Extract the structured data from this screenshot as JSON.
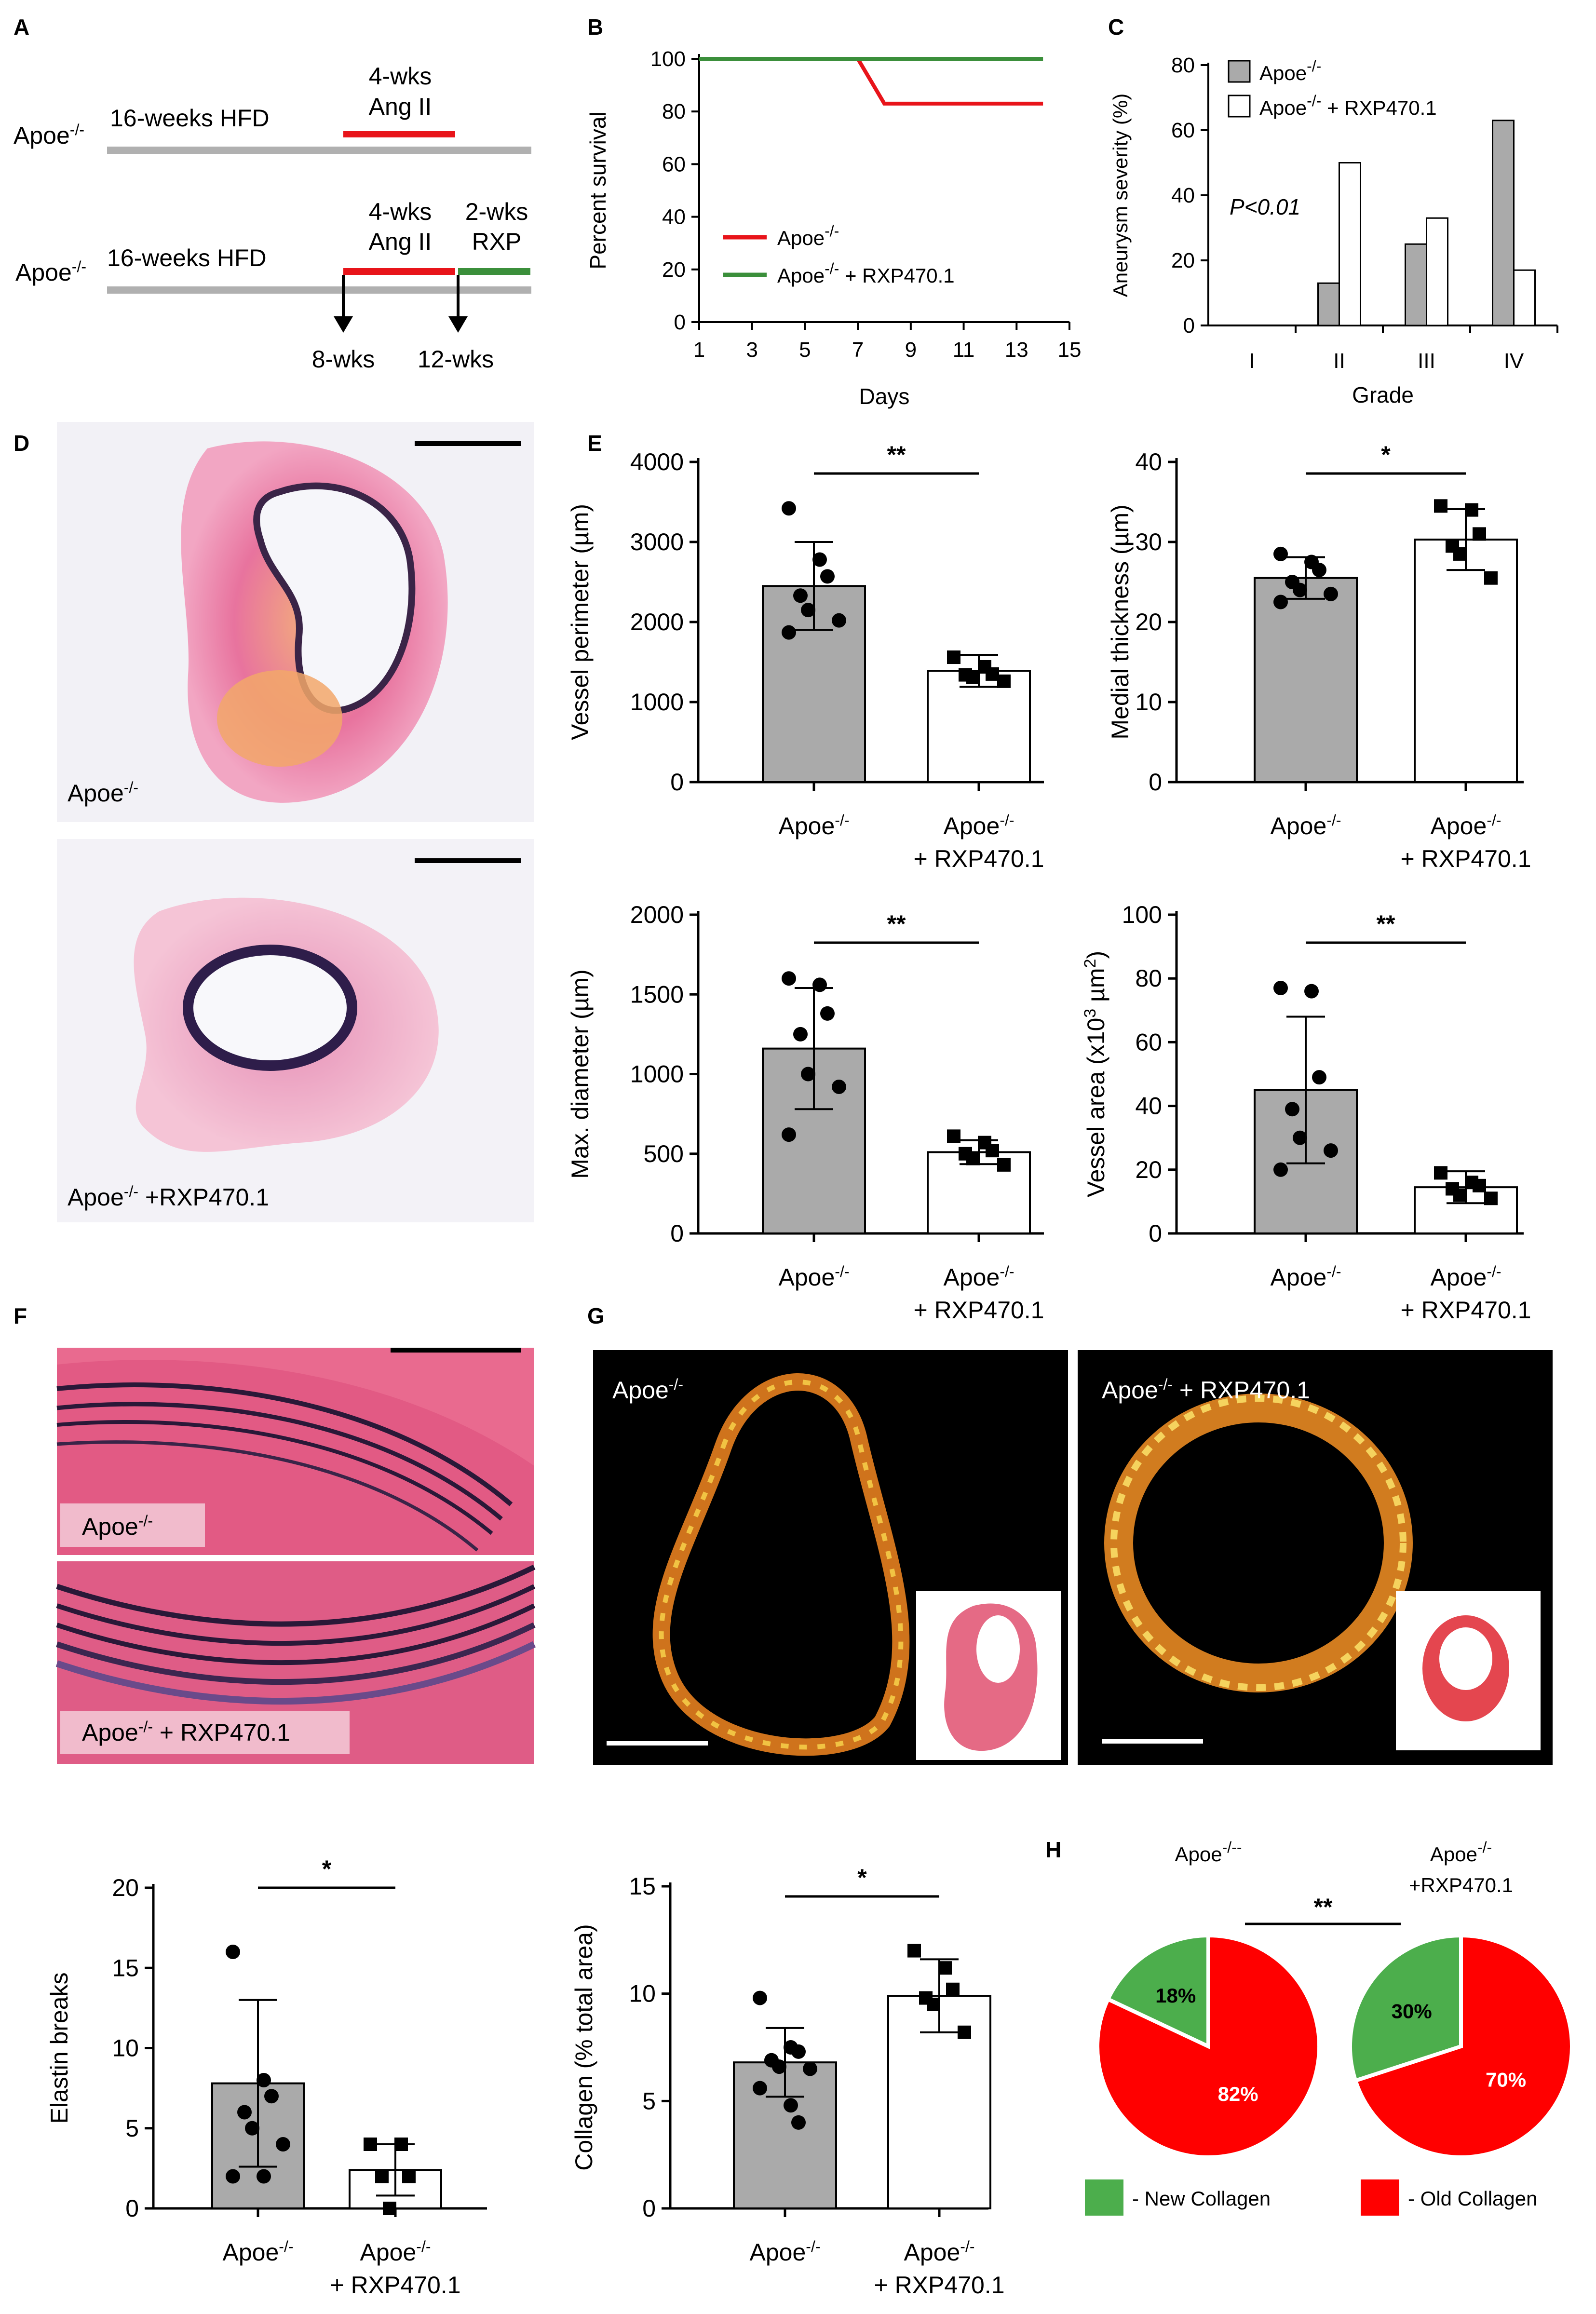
{
  "panels": {
    "A": {
      "label": "A",
      "row1": {
        "strain": "Apoe",
        "strain_sup": "-/-",
        "hfd": "16-weeks HFD",
        "ang_line1": "4-wks",
        "ang_line2": "Ang II"
      },
      "row2": {
        "strain": "Apoe",
        "strain_sup": "-/-",
        "hfd": "16-weeks HFD",
        "ang_line1": "4-wks",
        "ang_line2": "Ang II",
        "rxp_line1": "2-wks",
        "rxp_line2": "RXP",
        "arrow1": "8-wks",
        "arrow2": "12-wks"
      },
      "colors": {
        "baseline": "#b0b0b0",
        "ang": "#e8141a",
        "rxp": "#3b8f3b"
      }
    },
    "B": {
      "label": "B"
    },
    "C": {
      "label": "C"
    },
    "D": {
      "label": "D",
      "img1_label": "Apoe",
      "img1_sup": "-/-",
      "img2_label": "Apoe",
      "img2_sup": "-/-",
      "img2_suffix": " +RXP470.1"
    },
    "E": {
      "label": "E"
    },
    "F": {
      "label": "F",
      "img1_label": "Apoe",
      "img1_sup": "-/-",
      "img2_label": "Apoe",
      "img2_sup": "-/-",
      "img2_suffix": " + RXP470.1"
    },
    "G": {
      "label": "G",
      "img1_label": "Apoe",
      "img1_sup": "-/-",
      "img2_label": "Apoe",
      "img2_sup": "-/-",
      "img2_suffix": " + RXP470.1"
    },
    "H": {
      "label": "H"
    }
  },
  "groups": {
    "ctrl": {
      "name": "Apoe",
      "sup": "-/-"
    },
    "treat_line1": {
      "name": "Apoe",
      "sup": "-/-"
    },
    "treat_line2": "+ RXP470.1"
  },
  "colors": {
    "ctrl_bar": "#aaaaaa",
    "treat_bar": "#ffffff",
    "new_collagen": "#4cae4c",
    "old_collagen": "#ff0000",
    "survival_ctrl": "#e8141a",
    "survival_treat": "#3b8f3b"
  },
  "chart_data": [
    {
      "id": "B",
      "type": "line",
      "xlabel": "Days",
      "ylabel": "Percent survival",
      "xlim": [
        1,
        15
      ],
      "ylim": [
        0,
        100
      ],
      "xticks": [
        1,
        3,
        5,
        7,
        9,
        11,
        13,
        15
      ],
      "yticks": [
        0,
        20,
        40,
        60,
        80,
        100
      ],
      "series": [
        {
          "name": "Apoe-/-",
          "legend_name": "Apoe",
          "legend_sup": "-/-",
          "legend_suffix": "",
          "color": "#e8141a",
          "x": [
            1,
            7,
            8,
            14
          ],
          "y": [
            100,
            100,
            83,
            83
          ]
        },
        {
          "name": "Apoe-/- + RXP470.1",
          "legend_name": "Apoe",
          "legend_sup": "-/-",
          "legend_suffix": " + RXP470.1",
          "color": "#3b8f3b",
          "x": [
            1,
            14
          ],
          "y": [
            100,
            100
          ]
        }
      ]
    },
    {
      "id": "C",
      "type": "bar",
      "xlabel": "Grade",
      "ylabel": "Aneurysm severity (%)",
      "categories": [
        "I",
        "II",
        "III",
        "IV"
      ],
      "ylim": [
        0,
        80
      ],
      "yticks": [
        0,
        20,
        40,
        60,
        80
      ],
      "annotation": "P<0.01",
      "series": [
        {
          "name": "Apoe-/-",
          "legend_name": "Apoe",
          "legend_sup": "-/-",
          "legend_suffix": "",
          "color": "#aaaaaa",
          "values": [
            0,
            13,
            25,
            63
          ]
        },
        {
          "name": "Apoe-/- + RXP470.1",
          "legend_name": "Apoe",
          "legend_sup": "-/-",
          "legend_suffix": " + RXP470.1",
          "color": "#ffffff",
          "values": [
            0,
            50,
            33,
            17
          ]
        }
      ]
    },
    {
      "id": "E1",
      "type": "bar",
      "ylabel": "Vessel perimeter (µm)",
      "ylim": [
        0,
        4000
      ],
      "yticks": [
        0,
        1000,
        2000,
        3000,
        4000
      ],
      "significance": "**",
      "groups": [
        {
          "mean": 2450,
          "sd": 550,
          "marker": "circle",
          "points": [
            3420,
            2780,
            2570,
            2330,
            2150,
            2020,
            1870
          ]
        },
        {
          "mean": 1390,
          "sd": 200,
          "marker": "square",
          "points": [
            1560,
            1440,
            1350,
            1340,
            1310,
            1260
          ]
        }
      ]
    },
    {
      "id": "E2",
      "type": "bar",
      "ylabel": "Medial thickness (µm)",
      "ylim": [
        0,
        40
      ],
      "yticks": [
        0,
        10,
        20,
        30,
        40
      ],
      "significance": "*",
      "groups": [
        {
          "mean": 25.5,
          "sd": 2.6,
          "marker": "circle",
          "points": [
            28.5,
            27.5,
            26.5,
            25.0,
            24.0,
            23.5,
            22.5
          ]
        },
        {
          "mean": 30.3,
          "sd": 3.8,
          "marker": "square",
          "points": [
            34.5,
            34.0,
            31.0,
            29.5,
            28.5,
            25.5
          ]
        }
      ]
    },
    {
      "id": "E3",
      "type": "bar",
      "ylabel": "Max. diameter (µm)",
      "ylim": [
        0,
        2000
      ],
      "yticks": [
        0,
        500,
        1000,
        1500,
        2000
      ],
      "significance": "**",
      "groups": [
        {
          "mean": 1160,
          "sd": 380,
          "marker": "circle",
          "points": [
            1600,
            1560,
            1380,
            1250,
            1000,
            920,
            620
          ]
        },
        {
          "mean": 510,
          "sd": 75,
          "marker": "square",
          "points": [
            610,
            570,
            520,
            500,
            470,
            430
          ]
        }
      ]
    },
    {
      "id": "E4",
      "type": "bar",
      "ylabel": "Vessel area (x10³ µm²)",
      "ylabel_parts": [
        "Vessel area (x10",
        "3",
        " µm",
        "2",
        ")"
      ],
      "ylim": [
        0,
        100
      ],
      "yticks": [
        0,
        20,
        40,
        60,
        80,
        100
      ],
      "significance": "**",
      "groups": [
        {
          "mean": 45,
          "sd": 23,
          "marker": "circle",
          "points": [
            77,
            76,
            49,
            39,
            30,
            26,
            20
          ]
        },
        {
          "mean": 14.5,
          "sd": 5,
          "marker": "square",
          "points": [
            19,
            16,
            15,
            14,
            12,
            11
          ]
        }
      ]
    },
    {
      "id": "F",
      "type": "bar",
      "ylabel": "Elastin breaks",
      "ylim": [
        0,
        20
      ],
      "yticks": [
        0,
        5,
        10,
        15,
        20
      ],
      "significance": "*",
      "groups": [
        {
          "mean": 7.8,
          "sd": 5.2,
          "marker": "circle",
          "points": [
            16,
            8,
            7,
            6,
            5,
            4,
            2,
            2
          ]
        },
        {
          "mean": 2.4,
          "sd": 1.6,
          "marker": "square",
          "points": [
            4,
            4,
            2,
            2,
            0
          ]
        }
      ]
    },
    {
      "id": "G",
      "type": "bar",
      "ylabel": "Collagen (% total area)",
      "ylim": [
        0,
        15
      ],
      "yticks": [
        0,
        5,
        10,
        15
      ],
      "significance": "*",
      "groups": [
        {
          "mean": 6.8,
          "sd": 1.6,
          "marker": "circle",
          "points": [
            9.8,
            7.5,
            7.3,
            6.9,
            6.6,
            6.5,
            5.6,
            4.8,
            4.0
          ]
        },
        {
          "mean": 9.9,
          "sd": 1.7,
          "marker": "square",
          "points": [
            12.0,
            11.2,
            10.2,
            9.8,
            9.5,
            8.2
          ]
        }
      ]
    },
    {
      "id": "H",
      "type": "pie",
      "significance": "**",
      "pies": [
        {
          "title_name": "Apoe",
          "title_sup": "-/--",
          "title_line2": "",
          "slices": [
            {
              "label": "18%",
              "value": 18,
              "key": "new"
            },
            {
              "label": "82%",
              "value": 82,
              "key": "old"
            }
          ]
        },
        {
          "title_name": "Apoe",
          "title_sup": "-/-",
          "title_line2": "+RXP470.1",
          "slices": [
            {
              "label": "30%",
              "value": 30,
              "key": "new"
            },
            {
              "label": "70%",
              "value": 70,
              "key": "old"
            }
          ]
        }
      ],
      "legend": [
        {
          "key": "new",
          "label": "- New Collagen"
        },
        {
          "key": "old",
          "label": "- Old Collagen"
        }
      ]
    }
  ]
}
